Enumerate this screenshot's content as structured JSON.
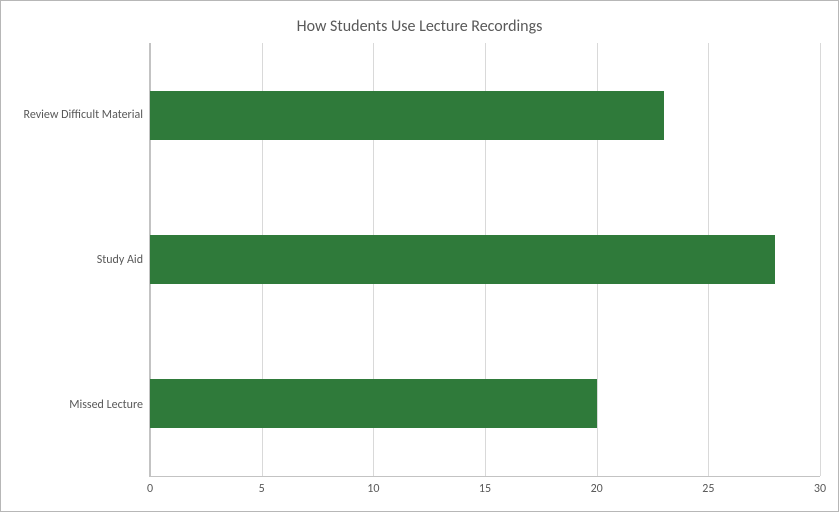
{
  "chart": {
    "type": "bar-horizontal",
    "title": "How Students Use Lecture Recordings",
    "title_fontsize": 16,
    "title_color": "#595959",
    "background_color": "#ffffff",
    "border_color": "#b7b7b7",
    "grid_color": "#d9d9d9",
    "axis_line_color": "#c3c3c3",
    "label_color": "#595959",
    "label_fontsize": 12,
    "xlim": [
      0,
      30
    ],
    "xtick_step": 5,
    "xticks": [
      0,
      5,
      10,
      15,
      20,
      25,
      30
    ],
    "bar_color": "#2f7a3a",
    "bar_fraction_of_slot": 0.34,
    "categories_top_to_bottom": [
      {
        "label": "Review Difficult Material",
        "value": 23
      },
      {
        "label": "Study Aid",
        "value": 28
      },
      {
        "label": "Missed Lecture",
        "value": 20
      }
    ]
  }
}
